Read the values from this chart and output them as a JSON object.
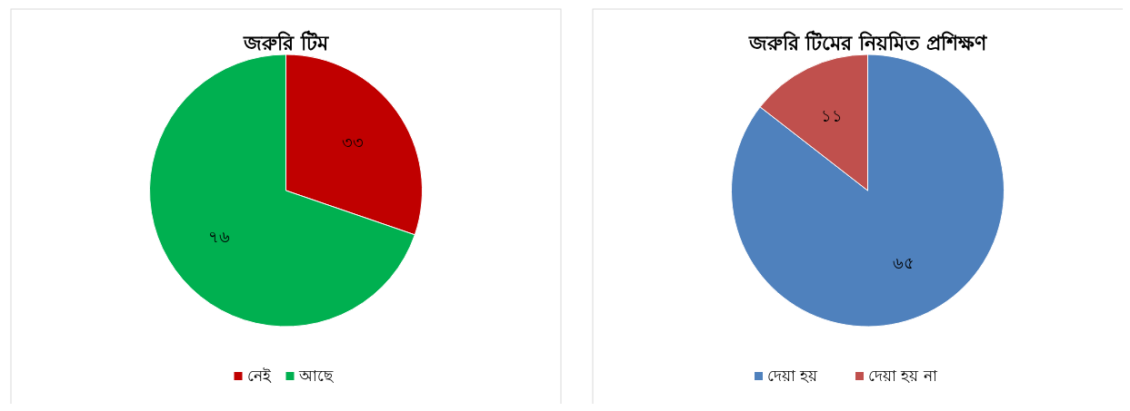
{
  "chart_data": [
    {
      "type": "pie",
      "title": "জরুরি টিম",
      "categories": [
        "নেই",
        "আছে"
      ],
      "values": [
        33,
        76
      ],
      "colors": [
        "#c00000",
        "#00b050"
      ],
      "value_labels": [
        "৩৩",
        "৭৬"
      ],
      "legend": "bottom"
    },
    {
      "type": "pie",
      "title": "জরুরি টিমের নিয়মিত প্রশিক্ষণ",
      "categories": [
        "দেয়া হয়",
        "দেয়া হয় না"
      ],
      "values": [
        65,
        11
      ],
      "colors": [
        "#4f81bd",
        "#c0504d"
      ],
      "value_labels": [
        "৬৫",
        "১১"
      ],
      "legend": "bottom"
    }
  ]
}
